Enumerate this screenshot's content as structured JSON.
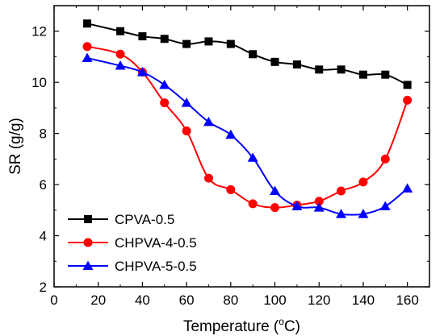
{
  "chart_data": {
    "type": "line",
    "xlabel": "Temperature (",
    "xlabel_unit": "C)",
    "xlabel_sup": "o",
    "ylabel": "SR (g/g)",
    "xlim": [
      0,
      170
    ],
    "ylim": [
      2,
      13
    ],
    "xticks": [
      0,
      20,
      40,
      60,
      80,
      100,
      120,
      140,
      160
    ],
    "yticks": [
      2,
      4,
      6,
      8,
      10,
      12
    ],
    "grid": false,
    "legend_position": "bottom-left",
    "series": [
      {
        "name": "CPVA-0.5",
        "color": "#000000",
        "marker": "square",
        "x": [
          15,
          30,
          40,
          50,
          60,
          70,
          80,
          90,
          100,
          110,
          120,
          130,
          140,
          150,
          160
        ],
        "y": [
          12.3,
          12.0,
          11.8,
          11.7,
          11.5,
          11.6,
          11.5,
          11.1,
          10.8,
          10.7,
          10.5,
          10.5,
          10.3,
          10.3,
          9.9
        ]
      },
      {
        "name": "CHPVA-4-0.5",
        "color": "#ff0000",
        "marker": "circle",
        "x": [
          15,
          30,
          40,
          50,
          60,
          70,
          80,
          90,
          100,
          110,
          120,
          130,
          140,
          150,
          160
        ],
        "y": [
          11.4,
          11.1,
          10.4,
          9.2,
          8.1,
          6.25,
          5.8,
          5.25,
          5.1,
          5.2,
          5.35,
          5.75,
          6.1,
          7.0,
          9.3
        ]
      },
      {
        "name": "CHPVA-5-0.5",
        "color": "#0000ff",
        "marker": "triangle",
        "x": [
          15,
          30,
          40,
          50,
          60,
          70,
          80,
          90,
          100,
          110,
          120,
          130,
          140,
          150,
          160
        ],
        "y": [
          10.95,
          10.65,
          10.4,
          9.9,
          9.2,
          8.45,
          7.95,
          7.05,
          5.75,
          5.15,
          5.1,
          4.85,
          4.85,
          5.15,
          5.85
        ]
      }
    ]
  }
}
